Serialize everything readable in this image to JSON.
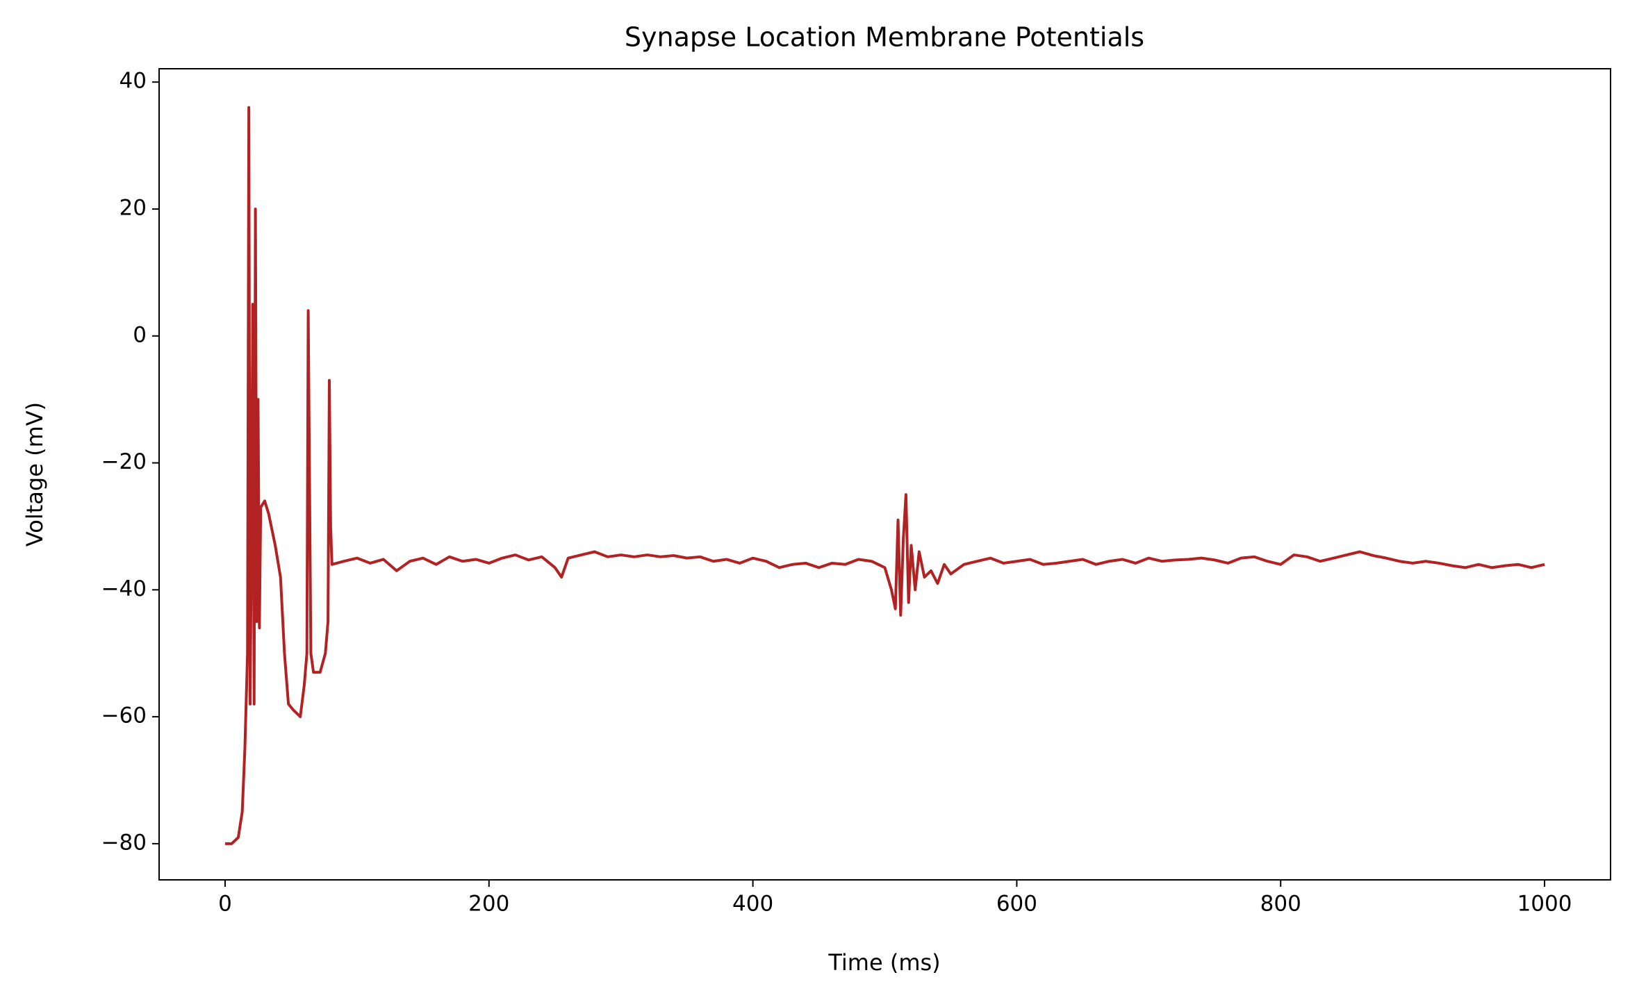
{
  "chart_data": {
    "type": "line",
    "title": "Synapse Location Membrane Potentials",
    "x_label": "Time (ms)",
    "y_label": "Voltage (mV)",
    "color": "#b22222",
    "x": [
      0,
      5,
      10,
      13,
      15,
      17,
      18,
      19,
      20,
      21,
      22,
      23,
      24,
      25,
      26,
      27,
      30,
      33,
      38,
      42,
      45,
      48,
      52,
      57,
      60,
      62,
      63,
      65,
      67,
      72,
      76,
      78,
      79,
      80,
      81,
      90,
      100,
      110,
      120,
      130,
      140,
      150,
      160,
      170,
      180,
      190,
      200,
      210,
      220,
      230,
      240,
      250,
      255,
      260,
      270,
      280,
      290,
      300,
      310,
      320,
      330,
      340,
      350,
      360,
      370,
      380,
      390,
      400,
      410,
      420,
      430,
      440,
      450,
      460,
      470,
      480,
      490,
      500,
      505,
      508,
      510,
      512,
      514,
      516,
      518,
      520,
      523,
      526,
      530,
      535,
      540,
      545,
      550,
      560,
      570,
      580,
      590,
      600,
      610,
      620,
      630,
      640,
      650,
      660,
      670,
      680,
      690,
      700,
      710,
      720,
      730,
      740,
      750,
      760,
      770,
      780,
      790,
      800,
      810,
      820,
      830,
      840,
      850,
      860,
      870,
      880,
      890,
      900,
      910,
      920,
      930,
      940,
      950,
      960,
      970,
      980,
      990,
      1000
    ],
    "values": [
      -80,
      -80,
      -79,
      -75,
      -65,
      -50,
      36,
      -58,
      -30,
      5,
      -58,
      20,
      -45,
      -10,
      -46,
      -27,
      -26,
      -28,
      -33,
      -38,
      -50,
      -58,
      -59,
      -60,
      -55,
      -50,
      4,
      -50,
      -53,
      -53,
      -50,
      -45,
      -7,
      -30,
      -36,
      -35.5,
      -35,
      -35.8,
      -35.2,
      -37,
      -35.5,
      -35,
      -36,
      -34.8,
      -35.5,
      -35.2,
      -35.8,
      -35,
      -34.5,
      -35.3,
      -34.8,
      -36.5,
      -38,
      -35,
      -34.5,
      -34,
      -34.8,
      -34.5,
      -34.8,
      -34.5,
      -34.8,
      -34.6,
      -35,
      -34.8,
      -35.5,
      -35.2,
      -35.8,
      -35,
      -35.5,
      -36.5,
      -36,
      -35.8,
      -36.5,
      -35.8,
      -36,
      -35.2,
      -35.5,
      -36.5,
      -40,
      -43,
      -29,
      -44,
      -32,
      -25,
      -42,
      -33,
      -40,
      -34,
      -38,
      -37,
      -39,
      -36,
      -37.5,
      -36,
      -35.5,
      -35,
      -35.8,
      -35.5,
      -35.2,
      -36,
      -35.8,
      -35.5,
      -35.2,
      -36,
      -35.5,
      -35.2,
      -35.8,
      -35,
      -35.5,
      -35.3,
      -35.2,
      -35,
      -35.3,
      -35.8,
      -35,
      -34.8,
      -35.5,
      -36,
      -34.5,
      -34.8,
      -35.5,
      -35,
      -34.5,
      -34,
      -34.6,
      -35,
      -35.5,
      -35.8,
      -35.5,
      -35.8,
      -36.2,
      -36.5,
      -36,
      -36.5,
      -36.2,
      -36,
      -36.5,
      -36
    ],
    "xlim": [
      -50,
      1050
    ],
    "ylim": [
      -85.7,
      42.1
    ],
    "xticks": [
      0,
      200,
      400,
      600,
      800,
      1000
    ],
    "yticks": [
      {
        "value": -80,
        "label": "−80"
      },
      {
        "value": -60,
        "label": "−60"
      },
      {
        "value": -40,
        "label": "−40"
      },
      {
        "value": -20,
        "label": "−20"
      },
      0,
      20,
      40
    ]
  }
}
